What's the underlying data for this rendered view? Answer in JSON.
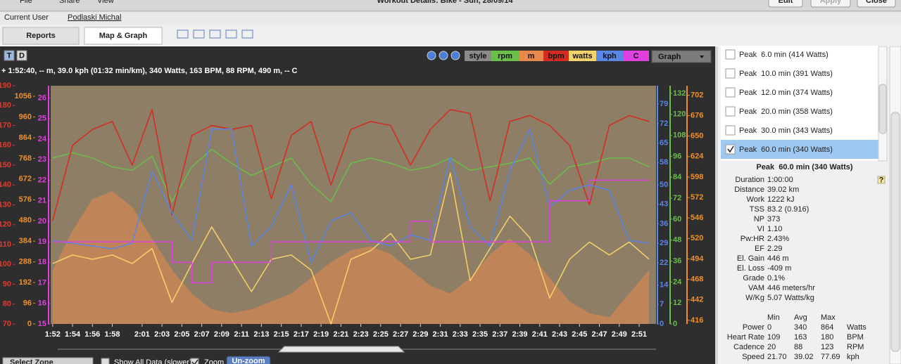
{
  "window": {
    "menu": [
      "File",
      "Share",
      "View"
    ],
    "title": "Workout Details: Bike - Sun, 28/09/14",
    "buttons": [
      "Edit",
      "Apply",
      "Close"
    ]
  },
  "user": {
    "label": "Current User",
    "name": "Podlaski Michal"
  },
  "tabs": [
    "Reports",
    "Map & Graph"
  ],
  "toolbar": {
    "toggles": [
      "T",
      "D"
    ],
    "style": "style",
    "mode": "Graph"
  },
  "readout": "+ 1:52:40, -- m, 39.0 kph (01:32 min/km), 340 Watts, 163 BPM, 88 RPM, 490 m, -- C",
  "chart_data": {
    "type": "line",
    "x": [
      112,
      114,
      116,
      118,
      120,
      122,
      124,
      126,
      128,
      130,
      132,
      134,
      136,
      138,
      140,
      142,
      144,
      146,
      148,
      150,
      152,
      154,
      156,
      158,
      160,
      162,
      164,
      166,
      168,
      170,
      172
    ],
    "xlim": [
      111.8,
      172.7
    ],
    "xticks": [
      {
        "value": 112,
        "label": "1:52"
      },
      {
        "value": 114,
        "label": "1:54"
      },
      {
        "value": 116,
        "label": "1:56"
      },
      {
        "value": 118,
        "label": "1:58"
      },
      {
        "value": 121,
        "label": "2:01"
      },
      {
        "value": 123,
        "label": "2:03"
      },
      {
        "value": 125,
        "label": "2:05"
      },
      {
        "value": 127,
        "label": "2:07"
      },
      {
        "value": 129,
        "label": "2:09"
      },
      {
        "value": 131,
        "label": "2:11"
      },
      {
        "value": 133,
        "label": "2:13"
      },
      {
        "value": 135,
        "label": "2:15"
      },
      {
        "value": 137,
        "label": "2:17"
      },
      {
        "value": 139,
        "label": "2:19"
      },
      {
        "value": 141,
        "label": "2:21"
      },
      {
        "value": 143,
        "label": "2:23"
      },
      {
        "value": 145,
        "label": "2:25"
      },
      {
        "value": 147,
        "label": "2:27"
      },
      {
        "value": 149,
        "label": "2:29"
      },
      {
        "value": 151,
        "label": "2:31"
      },
      {
        "value": 153,
        "label": "2:33"
      },
      {
        "value": 155,
        "label": "2:35"
      },
      {
        "value": 157,
        "label": "2:37"
      },
      {
        "value": 159,
        "label": "2:39"
      },
      {
        "value": 161,
        "label": "2:41"
      },
      {
        "value": 163,
        "label": "2:43"
      },
      {
        "value": 165,
        "label": "2:45"
      },
      {
        "value": 167,
        "label": "2:47"
      },
      {
        "value": 169,
        "label": "2:49"
      },
      {
        "value": 171,
        "label": "2:51"
      }
    ],
    "axes": [
      {
        "color": "#e03a2e",
        "lim": [
          70,
          190
        ],
        "ticks": [
          70,
          80,
          90,
          100,
          110,
          120,
          130,
          140,
          150,
          160,
          170,
          180,
          190
        ]
      },
      {
        "color": "#f0902a",
        "lim": [
          0,
          1105
        ],
        "ticks": [
          0,
          96,
          192,
          288,
          384,
          480,
          576,
          672,
          768,
          864,
          960,
          1056
        ]
      },
      {
        "color": "#e040e0",
        "lim": [
          15,
          26.6
        ],
        "ticks": [
          15,
          16,
          17,
          18,
          19,
          20,
          21,
          22,
          23,
          24,
          25,
          26
        ]
      },
      {
        "color": "#5a86e8",
        "lim": [
          0,
          85.6
        ],
        "ticks": [
          0,
          7,
          14,
          22,
          29,
          36,
          43,
          50,
          58,
          65,
          72,
          79
        ]
      },
      {
        "color": "#6abf4b",
        "lim": [
          0,
          136.4
        ],
        "ticks": [
          0,
          12,
          24,
          36,
          48,
          60,
          72,
          84,
          96,
          108,
          120,
          132
        ]
      },
      {
        "color": "#f0902a",
        "lim": [
          411.4,
          714
        ],
        "ticks": [
          416,
          442,
          468,
          494,
          520,
          546,
          572,
          598,
          624,
          650,
          676,
          702
        ]
      }
    ],
    "series": [
      {
        "name": "rpm",
        "color": "#6abf4b",
        "axis": 4,
        "values": [
          95,
          98,
          95,
          90,
          88,
          96,
          70,
          90,
          100,
          92,
          85,
          90,
          95,
          80,
          70,
          92,
          95,
          92,
          88,
          90,
          95,
          88,
          90,
          92,
          95,
          80,
          90,
          92,
          95,
          95,
          90
        ]
      },
      {
        "name": "m",
        "color": "#e8884a",
        "axis": 5,
        "fill": true,
        "values": [
          480,
          530,
          570,
          580,
          560,
          520,
          480,
          450,
          430,
          425,
          430,
          440,
          450,
          470,
          490,
          505,
          510,
          500,
          480,
          460,
          450,
          470,
          500,
          520,
          500,
          470,
          440,
          425,
          420,
          450,
          480
        ]
      },
      {
        "name": "bpm",
        "color": "#d42a22",
        "axis": 0,
        "values": [
          122,
          160,
          168,
          172,
          150,
          178,
          125,
          165,
          170,
          168,
          170,
          133,
          165,
          172,
          140,
          168,
          172,
          170,
          150,
          168,
          178,
          176,
          132,
          172,
          175,
          170,
          160,
          130,
          170,
          175,
          172
        ]
      },
      {
        "name": "watts",
        "color": "#f5d36a",
        "axis": 1,
        "values": [
          280,
          320,
          300,
          320,
          280,
          350,
          100,
          280,
          450,
          300,
          150,
          300,
          320,
          250,
          0,
          300,
          340,
          420,
          300,
          320,
          700,
          200,
          350,
          500,
          400,
          120,
          300,
          380,
          320,
          380,
          300
        ]
      },
      {
        "name": "kph",
        "color": "#5a86e8",
        "axis": 3,
        "values": [
          30,
          29,
          28,
          27,
          29,
          55,
          40,
          30,
          70,
          70,
          28,
          35,
          50,
          22,
          37,
          40,
          30,
          28,
          32,
          30,
          60,
          35,
          28,
          55,
          70,
          42,
          48,
          50,
          48,
          30,
          29
        ]
      },
      {
        "name": "C",
        "color": "#e040e0",
        "axis": 2,
        "step": true,
        "values": [
          19,
          19,
          19,
          19,
          19,
          19,
          18,
          17,
          18,
          18,
          18,
          19,
          19,
          19,
          19,
          19,
          19,
          19,
          20,
          19,
          19,
          19,
          19,
          19,
          19,
          21,
          21,
          22,
          22,
          22,
          22
        ]
      }
    ]
  },
  "controls": {
    "zone": "Select Zone",
    "show_all": "Show All Data (slower)",
    "zoom": "Zoom",
    "unzoom": "Un-zoom"
  },
  "peaks": {
    "items": [
      "Peak  6.0 min (414 Watts)",
      "Peak  10.0 min (391 Watts)",
      "Peak  12.0 min (374 Watts)",
      "Peak  20.0 min (358 Watts)",
      "Peak  30.0 min (343 Watts)",
      "Peak  60.0 min (340 Watts)"
    ],
    "checked": [
      false,
      false,
      false,
      false,
      false,
      true
    ]
  },
  "detail": {
    "title": "Peak  60.0 min (340 Watts)",
    "help": "?",
    "metrics": [
      {
        "label": "Duration",
        "value": "1:00:00"
      },
      {
        "label": "Distance",
        "value": "39.02 km"
      },
      {
        "label": "Work",
        "value": "1222 kJ"
      },
      {
        "label": "TSS",
        "value": "83.2 (0.916)"
      },
      {
        "label": "NP",
        "value": "373"
      },
      {
        "label": "VI",
        "value": "1.10"
      },
      {
        "label": "Pw:HR",
        "value": "2.43%"
      },
      {
        "label": "EF",
        "value": "2.29"
      },
      {
        "label": "El. Gain",
        "value": "446 m"
      },
      {
        "label": "El. Loss",
        "value": "-409 m"
      },
      {
        "label": "Grade",
        "value": "0.1%"
      },
      {
        "label": "VAM",
        "value": "446 meters/hr"
      },
      {
        "label": "W/Kg",
        "value": "5.07 Watts/kg"
      }
    ]
  },
  "summary": {
    "headers": [
      "Min",
      "Avg",
      "Max"
    ],
    "rows": [
      [
        "Power",
        "0",
        "340",
        "864",
        "Watts"
      ],
      [
        "Heart Rate",
        "109",
        "163",
        "180",
        "BPM"
      ],
      [
        "Cadence",
        "20",
        "88",
        "123",
        "RPM"
      ],
      [
        "Speed",
        "21.70",
        "39.02",
        "77.69",
        "kph"
      ]
    ]
  }
}
